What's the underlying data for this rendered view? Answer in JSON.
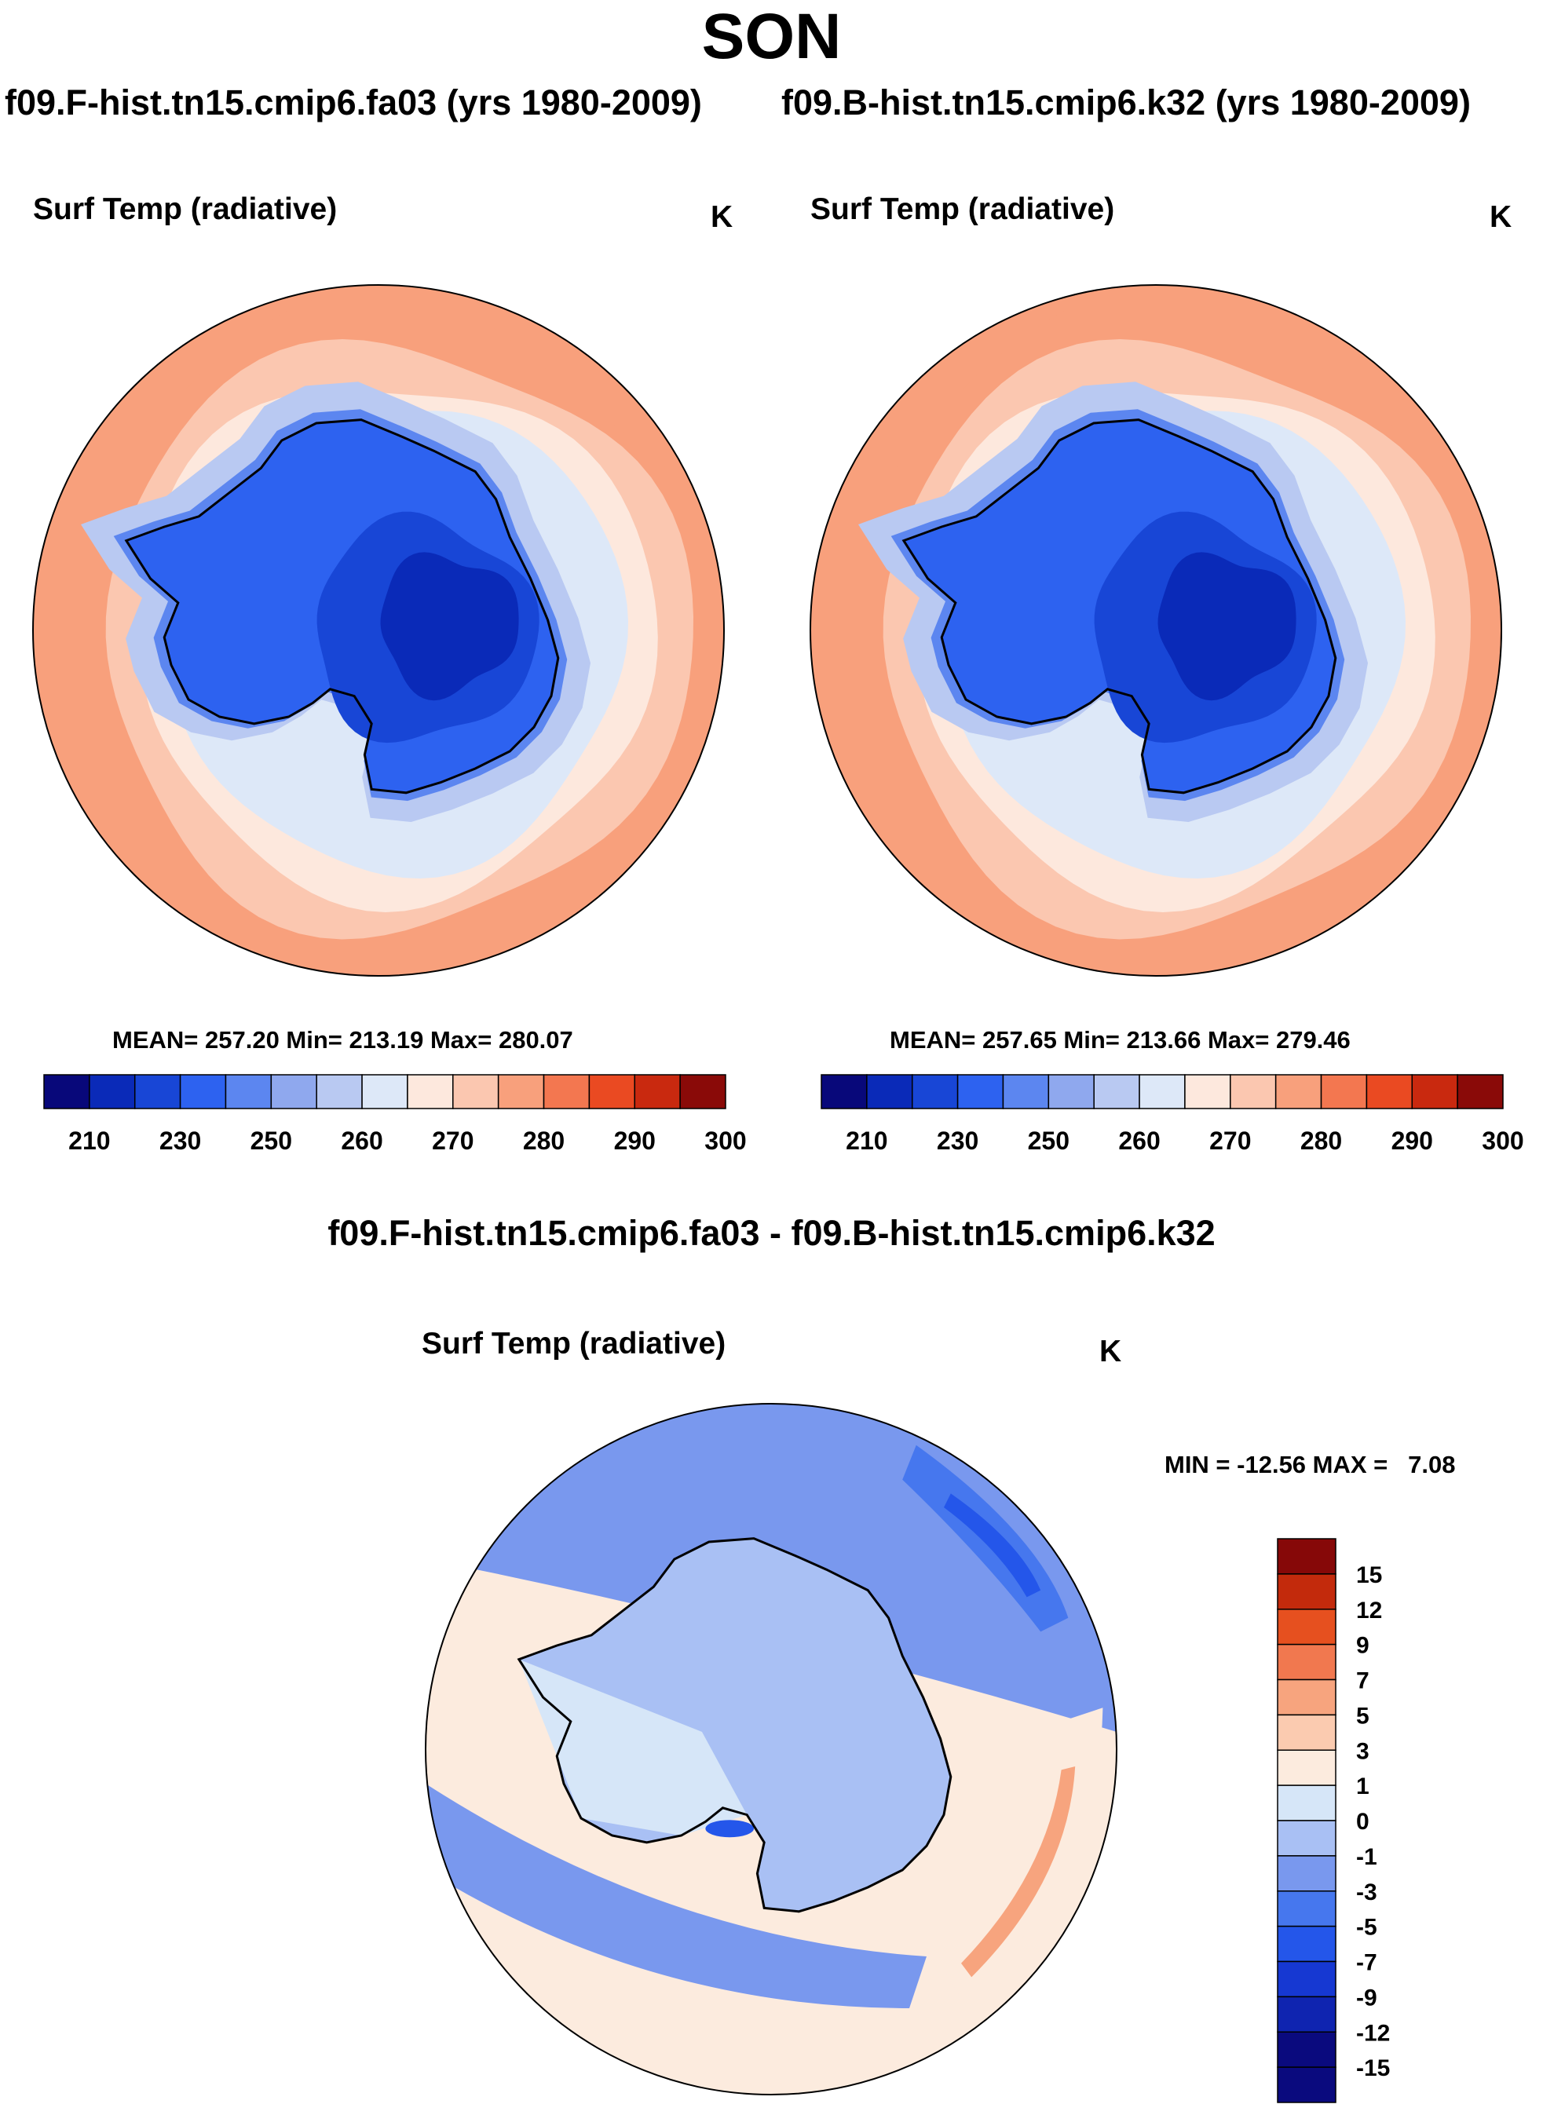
{
  "title": "SON",
  "case_titles": {
    "left": "f09.F-hist.tn15.cmip6.fa03 (yrs 1980-2009)",
    "right": "f09.B-hist.tn15.cmip6.k32 (yrs 1980-2009)",
    "diff": "f09.F-hist.tn15.cmip6.fa03 - f09.B-hist.tn15.cmip6.k32"
  },
  "colors": {
    "abs_scale": [
      "#08087a",
      "#0a2ab8",
      "#1846d6",
      "#2d62f0",
      "#5c86f0",
      "#8fa8ee",
      "#b9c9f2",
      "#dde8f8",
      "#fde8dd",
      "#fbc7b0",
      "#f8a07c",
      "#f37750",
      "#ea4a22",
      "#c9290f",
      "#8a0a08"
    ],
    "diff_scale": [
      "#0a0a7e",
      "#0f24b0",
      "#1638d2",
      "#2456ea",
      "#4677ee",
      "#7998ee",
      "#a9c0f4",
      "#d6e6f8",
      "#fcebde",
      "#fbcbb0",
      "#f7a47e",
      "#f1784f",
      "#e6501f",
      "#c32a0c",
      "#860808"
    ],
    "coastline": "#000000"
  },
  "chart_data": [
    {
      "type": "polar-contour-map",
      "panel": "left",
      "variable": "Surf Temp (radiative)",
      "units": "K",
      "stats": {
        "label": "MEAN= 257.20  Min= 213.19  Max= 280.07",
        "mean": 257.2,
        "min": 213.19,
        "max": 280.07
      },
      "levels": [
        205,
        210,
        220,
        230,
        240,
        250,
        255,
        260,
        265,
        270,
        275,
        280,
        285,
        290,
        295,
        300
      ],
      "colorbar_ticks": [
        "210",
        "230",
        "250",
        "260",
        "270",
        "280",
        "290",
        "300"
      ],
      "rings": {
        "south_pole": 212,
        "interior": 228,
        "coast": 246,
        "ice_zone": 258,
        "ring_60s": 263,
        "ring_55s": 268,
        "ring_50s": 272,
        "ring_45s": 276,
        "rim_40s": 279
      }
    },
    {
      "type": "polar-contour-map",
      "panel": "right",
      "variable": "Surf Temp (radiative)",
      "units": "K",
      "stats": {
        "label": "MEAN= 257.65  Min= 213.66  Max= 279.46",
        "mean": 257.65,
        "min": 213.66,
        "max": 279.46
      },
      "levels": [
        205,
        210,
        220,
        230,
        240,
        250,
        255,
        260,
        265,
        270,
        275,
        280,
        285,
        290,
        295,
        300
      ],
      "colorbar_ticks": [
        "210",
        "230",
        "250",
        "260",
        "270",
        "280",
        "290",
        "300"
      ],
      "rings": {
        "south_pole": 213,
        "interior": 228,
        "coast": 246,
        "ice_zone": 258,
        "ring_60s": 264,
        "ring_55s": 268,
        "ring_50s": 272,
        "ring_45s": 276,
        "rim_40s": 279
      }
    },
    {
      "type": "polar-contour-map",
      "panel": "difference",
      "variable": "Surf Temp (radiative)",
      "units": "K",
      "stats": {
        "label": "MIN = -12.56 MAX =   7.08",
        "min": -12.56,
        "max": 7.08
      },
      "levels": [
        -15,
        -12,
        -9,
        -7,
        -5,
        -3,
        -1,
        0,
        1,
        3,
        5,
        7,
        9,
        12,
        15
      ],
      "colorbar_ticks": [
        "15",
        "12",
        "9",
        "7",
        "5",
        "3",
        "1",
        "0",
        "-1",
        "-3",
        "-5",
        "-7",
        "-9",
        "-12",
        "-15"
      ],
      "features": {
        "east_antarctica": -0.5,
        "west_antarctica": 0.5,
        "ross_sea": -7,
        "southern_ocean_cold_band": -4,
        "indian_sector_warm_band": 5,
        "pacific_ocean": 1
      }
    }
  ]
}
